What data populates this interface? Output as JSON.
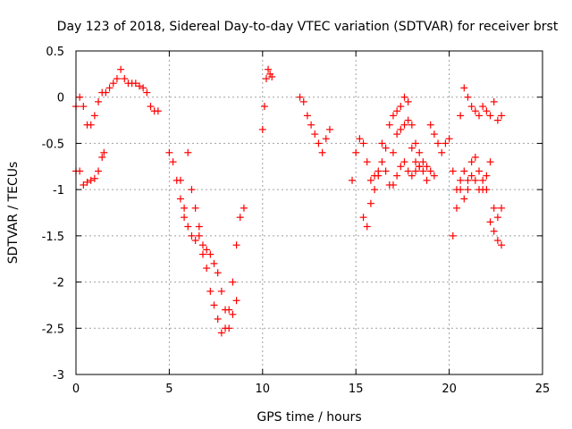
{
  "chart_data": {
    "type": "scatter",
    "title": "Day 123 of 2018, Sidereal Day-to-day VTEC variation (SDTVAR) for receiver brst",
    "xlabel": "GPS time / hours",
    "ylabel": "SDTVAR / TECUs",
    "xlim": [
      0,
      25
    ],
    "ylim": [
      -3,
      0.5
    ],
    "xticks": [
      "0",
      "5",
      "10",
      "15",
      "20",
      "25"
    ],
    "yticks": [
      "0.5",
      "0",
      "-0.5",
      "-1",
      "-1.5",
      "-2",
      "-2.5",
      "-3"
    ],
    "grid": true,
    "marker": "plus",
    "series": [
      {
        "name": "SDTVAR",
        "color": "#ff0000",
        "segments": [
          [
            [
              0.0,
              -0.1
            ],
            [
              0.2,
              0.0
            ],
            [
              0.4,
              -0.1
            ],
            [
              0.6,
              -0.3
            ],
            [
              0.8,
              -0.3
            ],
            [
              1.0,
              -0.2
            ],
            [
              1.2,
              -0.05
            ],
            [
              1.4,
              0.05
            ],
            [
              1.6,
              0.05
            ],
            [
              1.8,
              0.1
            ],
            [
              2.0,
              0.15
            ],
            [
              2.2,
              0.2
            ],
            [
              2.4,
              0.3
            ],
            [
              2.6,
              0.2
            ],
            [
              2.8,
              0.15
            ],
            [
              3.0,
              0.15
            ],
            [
              3.2,
              0.15
            ],
            [
              3.4,
              0.12
            ],
            [
              3.6,
              0.1
            ],
            [
              3.8,
              0.05
            ],
            [
              4.0,
              -0.1
            ],
            [
              4.2,
              -0.15
            ],
            [
              4.4,
              -0.15
            ]
          ],
          [
            [
              0.0,
              -0.8
            ],
            [
              0.2,
              -0.8
            ],
            [
              0.4,
              -0.95
            ],
            [
              0.6,
              -0.92
            ],
            [
              0.8,
              -0.9
            ],
            [
              1.0,
              -0.88
            ],
            [
              1.2,
              -0.8
            ],
            [
              1.4,
              -0.65
            ],
            [
              1.5,
              -0.6
            ]
          ],
          [
            [
              5.0,
              -0.6
            ],
            [
              5.2,
              -0.7
            ],
            [
              5.4,
              -0.9
            ],
            [
              5.6,
              -1.1
            ],
            [
              5.8,
              -1.3
            ],
            [
              6.0,
              -1.4
            ],
            [
              6.2,
              -1.5
            ],
            [
              6.4,
              -1.55
            ],
            [
              6.6,
              -1.5
            ],
            [
              6.8,
              -1.7
            ],
            [
              7.0,
              -1.85
            ],
            [
              7.2,
              -2.1
            ],
            [
              7.4,
              -2.25
            ],
            [
              7.6,
              -2.4
            ],
            [
              7.8,
              -2.55
            ],
            [
              8.0,
              -2.5
            ],
            [
              8.2,
              -2.3
            ],
            [
              8.4,
              -2.0
            ],
            [
              8.6,
              -1.6
            ],
            [
              8.8,
              -1.3
            ],
            [
              9.0,
              -1.2
            ]
          ],
          [
            [
              5.6,
              -0.9
            ],
            [
              5.8,
              -1.2
            ],
            [
              6.0,
              -0.6
            ],
            [
              6.2,
              -1.0
            ],
            [
              6.4,
              -1.2
            ],
            [
              6.6,
              -1.4
            ],
            [
              6.8,
              -1.6
            ],
            [
              7.0,
              -1.65
            ],
            [
              7.2,
              -1.7
            ],
            [
              7.4,
              -1.8
            ],
            [
              7.6,
              -1.9
            ],
            [
              7.8,
              -2.1
            ],
            [
              8.0,
              -2.3
            ],
            [
              8.2,
              -2.5
            ],
            [
              8.4,
              -2.35
            ],
            [
              8.6,
              -2.2
            ]
          ],
          [
            [
              10.0,
              -0.35
            ],
            [
              10.1,
              -0.1
            ],
            [
              10.2,
              0.2
            ],
            [
              10.3,
              0.3
            ],
            [
              10.4,
              0.25
            ],
            [
              10.5,
              0.22
            ]
          ],
          [
            [
              12.0,
              0.0
            ],
            [
              12.2,
              -0.05
            ],
            [
              12.4,
              -0.2
            ],
            [
              12.6,
              -0.3
            ],
            [
              12.8,
              -0.4
            ],
            [
              13.0,
              -0.5
            ],
            [
              13.2,
              -0.6
            ],
            [
              13.4,
              -0.45
            ],
            [
              13.6,
              -0.35
            ]
          ],
          [
            [
              14.8,
              -0.9
            ],
            [
              15.0,
              -0.6
            ],
            [
              15.2,
              -0.45
            ],
            [
              15.4,
              -0.5
            ],
            [
              15.6,
              -0.7
            ],
            [
              15.8,
              -0.9
            ],
            [
              16.0,
              -0.85
            ],
            [
              16.2,
              -0.8
            ],
            [
              16.4,
              -0.5
            ],
            [
              16.6,
              -0.55
            ],
            [
              16.8,
              -0.3
            ],
            [
              17.0,
              -0.2
            ],
            [
              17.2,
              -0.15
            ],
            [
              17.4,
              -0.1
            ],
            [
              17.6,
              0.0
            ],
            [
              17.8,
              -0.05
            ],
            [
              18.0,
              -0.3
            ],
            [
              18.2,
              -0.5
            ],
            [
              18.4,
              -0.6
            ],
            [
              18.6,
              -0.8
            ],
            [
              18.8,
              -0.9
            ]
          ],
          [
            [
              15.4,
              -1.3
            ],
            [
              15.6,
              -1.4
            ],
            [
              15.8,
              -1.15
            ],
            [
              16.0,
              -1.0
            ],
            [
              16.2,
              -0.85
            ],
            [
              16.4,
              -0.7
            ],
            [
              16.6,
              -0.8
            ],
            [
              16.8,
              -0.95
            ],
            [
              17.0,
              -0.6
            ],
            [
              17.2,
              -0.4
            ],
            [
              17.4,
              -0.35
            ],
            [
              17.6,
              -0.3
            ],
            [
              17.8,
              -0.25
            ],
            [
              18.0,
              -0.55
            ],
            [
              18.2,
              -0.7
            ],
            [
              18.4,
              -0.75
            ]
          ],
          [
            [
              17.0,
              -0.95
            ],
            [
              17.2,
              -0.85
            ],
            [
              17.4,
              -0.75
            ],
            [
              17.6,
              -0.7
            ],
            [
              17.8,
              -0.8
            ],
            [
              18.0,
              -0.85
            ],
            [
              18.2,
              -0.8
            ],
            [
              18.4,
              -0.75
            ],
            [
              18.6,
              -0.7
            ],
            [
              18.8,
              -0.75
            ],
            [
              19.0,
              -0.8
            ],
            [
              19.2,
              -0.85
            ]
          ],
          [
            [
              19.0,
              -0.3
            ],
            [
              19.2,
              -0.4
            ],
            [
              19.4,
              -0.5
            ],
            [
              19.6,
              -0.6
            ],
            [
              19.8,
              -0.5
            ],
            [
              20.0,
              -0.45
            ],
            [
              20.2,
              -0.8
            ],
            [
              20.4,
              -1.0
            ],
            [
              20.6,
              -0.2
            ],
            [
              20.8,
              0.1
            ],
            [
              21.0,
              0.0
            ],
            [
              21.2,
              -0.1
            ],
            [
              21.4,
              -0.15
            ],
            [
              21.6,
              -0.2
            ],
            [
              21.8,
              -0.1
            ],
            [
              22.0,
              -0.15
            ],
            [
              22.2,
              -0.2
            ],
            [
              22.4,
              -0.05
            ],
            [
              22.6,
              -0.25
            ],
            [
              22.8,
              -0.2
            ]
          ],
          [
            [
              20.2,
              -1.5
            ],
            [
              20.4,
              -1.2
            ],
            [
              20.6,
              -0.9
            ],
            [
              20.8,
              -0.8
            ],
            [
              21.0,
              -1.0
            ],
            [
              21.2,
              -0.7
            ],
            [
              21.4,
              -0.65
            ],
            [
              21.6,
              -0.8
            ],
            [
              21.8,
              -0.9
            ],
            [
              22.0,
              -0.85
            ],
            [
              22.2,
              -0.7
            ],
            [
              22.4,
              -1.2
            ],
            [
              22.6,
              -1.3
            ],
            [
              22.8,
              -1.2
            ]
          ],
          [
            [
              20.6,
              -1.0
            ],
            [
              20.8,
              -1.1
            ],
            [
              21.0,
              -0.9
            ],
            [
              21.2,
              -0.85
            ],
            [
              21.4,
              -0.9
            ],
            [
              21.6,
              -1.0
            ],
            [
              21.8,
              -1.0
            ],
            [
              22.0,
              -1.0
            ],
            [
              22.2,
              -1.35
            ],
            [
              22.4,
              -1.45
            ],
            [
              22.6,
              -1.55
            ],
            [
              22.8,
              -1.6
            ]
          ]
        ]
      }
    ]
  }
}
